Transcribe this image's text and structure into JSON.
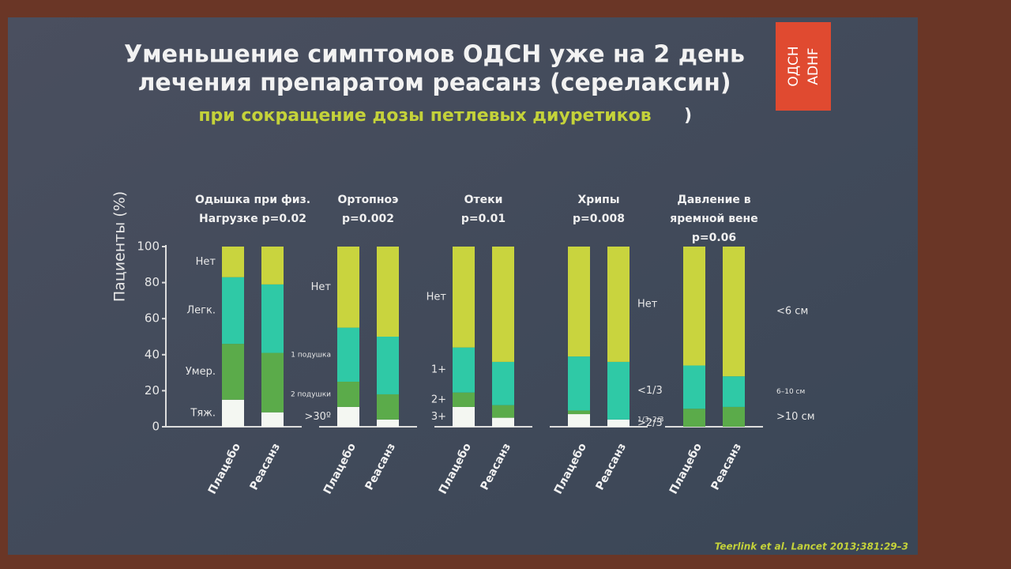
{
  "title_lines": [
    "Уменьшение симптомов ОДСН уже на 2 день",
    "лечения препаратом реасанз (серелаксин)"
  ],
  "subtitle": "при сокращение дозы петлевых диуретиков",
  "subtitle_close": ")",
  "badge": [
    "ОДСН",
    "ADHF"
  ],
  "citation": "Teerlink et al. Lancet 2013;381:29–3",
  "chart_data": {
    "type": "bar",
    "stacked": true,
    "ylabel": "Пациенты (%)",
    "ylim": [
      0,
      100
    ],
    "yticks": [
      0,
      20,
      40,
      60,
      80,
      100
    ],
    "grid": false,
    "groups": [
      {
        "title_lines": [
          "Одышка при физ.",
          "Нагрузке p=0.02"
        ],
        "categories": [
          "Плацебо",
          "Реасанз"
        ],
        "legend": "left",
        "series": [
          {
            "name": "Тяж.",
            "color": "#f4f7f2",
            "values": [
              15,
              8
            ]
          },
          {
            "name": "Умер.",
            "color": "#5bab4a",
            "values": [
              31,
              33
            ]
          },
          {
            "name": "Легк.",
            "color": "#2fc9a6",
            "values": [
              37,
              38
            ]
          },
          {
            "name": "Нет",
            "color": "#c9d43e",
            "values": [
              17,
              21
            ]
          }
        ]
      },
      {
        "title_lines": [
          "Ортопноэ",
          "p=0.002"
        ],
        "categories": [
          "Плацебо",
          "Реасанз"
        ],
        "legend": "left",
        "series": [
          {
            "name": ">30º",
            "color": "#f4f7f2",
            "values": [
              11,
              4
            ]
          },
          {
            "name": "2 подушки",
            "color": "#5bab4a",
            "values": [
              14,
              14
            ]
          },
          {
            "name": "1 подушка",
            "color": "#2fc9a6",
            "values": [
              30,
              32
            ]
          },
          {
            "name": "Нет",
            "color": "#c9d43e",
            "values": [
              45,
              50
            ]
          }
        ]
      },
      {
        "title_lines": [
          "Отеки",
          "p=0.01"
        ],
        "categories": [
          "Плацебо",
          "Реасанз"
        ],
        "legend": "left",
        "series": [
          {
            "name": "3+",
            "color": "#f4f7f2",
            "values": [
              11,
              5
            ]
          },
          {
            "name": "2+",
            "color": "#5bab4a",
            "values": [
              8,
              7
            ]
          },
          {
            "name": "1+",
            "color": "#2fc9a6",
            "values": [
              25,
              24
            ]
          },
          {
            "name": "Нет",
            "color": "#c9d43e",
            "values": [
              56,
              64
            ]
          }
        ]
      },
      {
        "title_lines": [
          "Хрипы",
          "p=0.008"
        ],
        "categories": [
          "Плацебо",
          "Реасанз"
        ],
        "legend": "right",
        "series": [
          {
            "name": ">2/3",
            "color": "#f4f7f2",
            "values": [
              7,
              4
            ]
          },
          {
            "name": "1/3–2/3",
            "color": "#5bab4a",
            "values": [
              2,
              0
            ]
          },
          {
            "name": "<1/3",
            "color": "#2fc9a6",
            "values": [
              30,
              32
            ]
          },
          {
            "name": "Нет",
            "color": "#c9d43e",
            "values": [
              61,
              64
            ]
          }
        ]
      },
      {
        "title_lines": [
          "Давление в",
          "яремной вене",
          "p=0.06"
        ],
        "categories": [
          "Плацебо",
          "Реасанз"
        ],
        "legend": "right",
        "series": [
          {
            "name": ">10 см",
            "color": "#5bab4a",
            "values": [
              10,
              11
            ]
          },
          {
            "name": "6–10 см",
            "color": "#2fc9a6",
            "values": [
              24,
              17
            ]
          },
          {
            "name": "<6 см",
            "color": "#c9d43e",
            "values": [
              66,
              72
            ]
          }
        ]
      }
    ]
  }
}
